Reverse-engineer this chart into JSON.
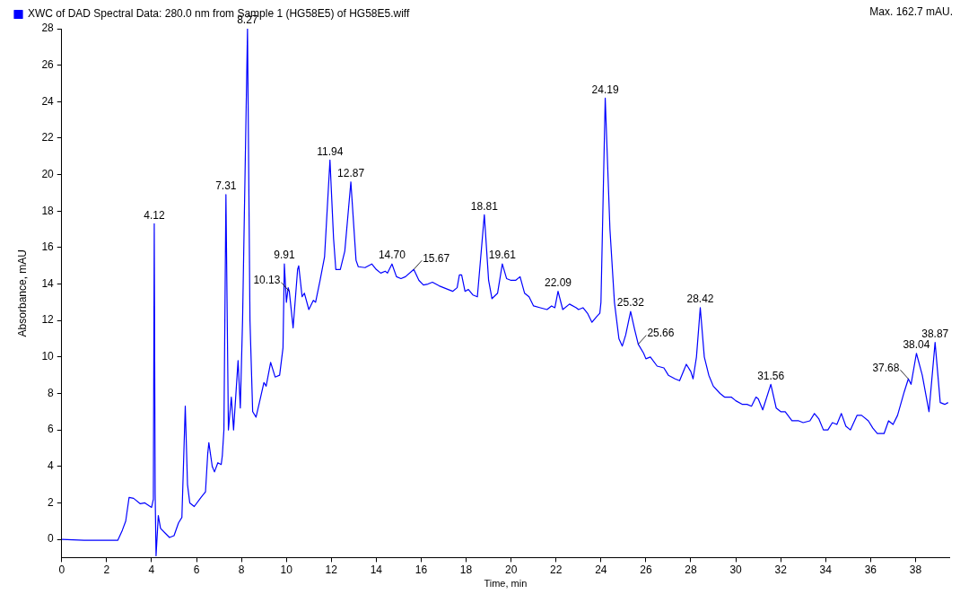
{
  "chart_data": {
    "type": "line",
    "xlabel": "Time, min",
    "ylabel": "Absorbance, mAU",
    "legend": "top left",
    "marker": "none",
    "line_style": "solid",
    "grid": false,
    "xlim": [
      0,
      39.5
    ],
    "xticks": [
      0,
      2,
      4,
      6,
      8,
      10,
      12,
      14,
      16,
      18,
      20,
      22,
      24,
      26,
      28,
      30,
      32,
      34,
      36,
      38
    ],
    "ylim": [
      -1,
      28
    ],
    "yticks": [
      0,
      2,
      4,
      6,
      8,
      10,
      12,
      14,
      16,
      18,
      20,
      22,
      24,
      26,
      28
    ],
    "series": [
      {
        "name": "XWC of DAD Spectral Data: 280.0 nm from Sample 1 (HG58E5) of HG58E5.wiff",
        "color": "#0000ff",
        "x": [
          0,
          1,
          2,
          2.5,
          2.7,
          2.85,
          3.0,
          3.2,
          3.5,
          3.7,
          4.0,
          4.08,
          4.12,
          4.16,
          4.2,
          4.3,
          4.4,
          4.6,
          4.8,
          5.0,
          5.2,
          5.35,
          5.5,
          5.6,
          5.7,
          5.9,
          6.2,
          6.4,
          6.5,
          6.55,
          6.7,
          6.8,
          6.95,
          7.1,
          7.15,
          7.22,
          7.31,
          7.42,
          7.55,
          7.65,
          7.85,
          7.95,
          8.05,
          8.27,
          8.38,
          8.5,
          8.65,
          8.8,
          9.0,
          9.1,
          9.3,
          9.5,
          9.7,
          9.85,
          9.91,
          10.0,
          10.08,
          10.13,
          10.3,
          10.5,
          10.55,
          10.7,
          10.8,
          11.0,
          11.2,
          11.3,
          11.5,
          11.7,
          11.94,
          12.1,
          12.2,
          12.4,
          12.6,
          12.87,
          13.1,
          13.2,
          13.5,
          13.8,
          14.0,
          14.2,
          14.4,
          14.5,
          14.7,
          14.9,
          15.1,
          15.3,
          15.67,
          15.9,
          16.1,
          16.3,
          16.5,
          16.8,
          17.2,
          17.4,
          17.6,
          17.7,
          17.8,
          17.95,
          18.1,
          18.3,
          18.5,
          18.81,
          19.0,
          19.15,
          19.4,
          19.61,
          19.8,
          20.0,
          20.2,
          20.4,
          20.6,
          20.8,
          21.0,
          21.3,
          21.6,
          21.8,
          21.95,
          22.09,
          22.3,
          22.6,
          22.9,
          23.0,
          23.2,
          23.4,
          23.6,
          23.8,
          23.95,
          24.0,
          24.19,
          24.4,
          24.6,
          24.8,
          24.95,
          25.1,
          25.32,
          25.5,
          25.66,
          25.9,
          26.0,
          26.2,
          26.5,
          26.8,
          27.0,
          27.3,
          27.5,
          27.8,
          28.0,
          28.1,
          28.25,
          28.42,
          28.6,
          28.8,
          29.0,
          29.3,
          29.5,
          29.8,
          30.0,
          30.3,
          30.5,
          30.7,
          30.9,
          31.0,
          31.2,
          31.56,
          31.8,
          32.0,
          32.2,
          32.5,
          32.8,
          33.0,
          33.3,
          33.5,
          33.7,
          33.9,
          34.1,
          34.3,
          34.5,
          34.7,
          34.9,
          35.1,
          35.4,
          35.6,
          35.9,
          36.1,
          36.3,
          36.6,
          36.8,
          37.0,
          37.2,
          37.5,
          37.68,
          37.8,
          38.04,
          38.3,
          38.6,
          38.87,
          39.1,
          39.3,
          39.45
        ],
        "values": [
          0,
          -0.05,
          -0.05,
          -0.05,
          0.5,
          1.0,
          2.3,
          2.25,
          1.95,
          2.0,
          1.75,
          2.2,
          17.3,
          2.5,
          -0.9,
          1.3,
          0.6,
          0.35,
          0.1,
          0.2,
          0.9,
          1.2,
          7.3,
          3.0,
          2.0,
          1.8,
          2.3,
          2.6,
          4.7,
          5.3,
          4.0,
          3.7,
          4.2,
          4.1,
          4.6,
          6.0,
          18.9,
          6.0,
          7.8,
          6.0,
          9.8,
          7.2,
          12.0,
          28.0,
          12.0,
          7.0,
          6.7,
          7.5,
          8.6,
          8.4,
          9.7,
          8.9,
          9.0,
          10.5,
          15.1,
          13.0,
          13.8,
          13.6,
          11.6,
          14.8,
          15.0,
          13.3,
          13.5,
          12.6,
          13.1,
          13.0,
          14.2,
          15.5,
          20.8,
          16.5,
          14.8,
          14.8,
          15.8,
          19.6,
          15.3,
          14.95,
          14.9,
          15.1,
          14.8,
          14.6,
          14.7,
          14.6,
          15.1,
          14.4,
          14.3,
          14.4,
          14.8,
          14.2,
          13.95,
          14.0,
          14.1,
          13.9,
          13.7,
          13.6,
          13.8,
          14.5,
          14.5,
          13.6,
          13.7,
          13.4,
          13.3,
          17.8,
          14.2,
          13.2,
          13.5,
          15.1,
          14.3,
          14.2,
          14.2,
          14.4,
          13.5,
          13.3,
          12.8,
          12.7,
          12.6,
          12.8,
          12.7,
          13.6,
          12.6,
          12.9,
          12.7,
          12.6,
          12.7,
          12.4,
          11.9,
          12.2,
          12.4,
          13.0,
          24.2,
          17.0,
          13.0,
          11.0,
          10.6,
          11.2,
          12.5,
          11.5,
          10.7,
          10.2,
          9.9,
          10.0,
          9.5,
          9.4,
          9.0,
          8.8,
          8.7,
          9.6,
          9.2,
          8.8,
          10.0,
          12.7,
          10.0,
          9.0,
          8.4,
          8.0,
          7.8,
          7.8,
          7.6,
          7.4,
          7.4,
          7.3,
          7.8,
          7.7,
          7.1,
          8.5,
          7.2,
          7.0,
          7.0,
          6.5,
          6.5,
          6.4,
          6.5,
          6.9,
          6.6,
          6.0,
          6.0,
          6.4,
          6.3,
          6.9,
          6.2,
          6.0,
          6.8,
          6.8,
          6.5,
          6.1,
          5.8,
          5.8,
          6.5,
          6.3,
          6.8,
          8.1,
          8.8,
          8.5,
          10.2,
          9.0,
          7.0,
          10.8,
          7.5,
          7.4,
          7.5
        ]
      }
    ],
    "annotations": [
      "Max. 162.7 mAU.",
      {
        "text": "4.12",
        "x": 4.12,
        "y": 17.3
      },
      {
        "text": "7.31",
        "x": 7.31,
        "y": 18.9
      },
      {
        "text": "8.27",
        "x": 8.27,
        "y": 28.0
      },
      {
        "text": "9.91",
        "x": 9.91,
        "y": 15.1
      },
      {
        "text": "10.13",
        "x": 10.13,
        "y": 13.6
      },
      {
        "text": "11.94",
        "x": 11.94,
        "y": 20.8
      },
      {
        "text": "12.87",
        "x": 12.87,
        "y": 19.6
      },
      {
        "text": "14.70",
        "x": 14.7,
        "y": 15.1
      },
      {
        "text": "15.67",
        "x": 15.67,
        "y": 14.8
      },
      {
        "text": "18.81",
        "x": 18.81,
        "y": 17.8
      },
      {
        "text": "19.61",
        "x": 19.61,
        "y": 15.1
      },
      {
        "text": "22.09",
        "x": 22.09,
        "y": 13.6
      },
      {
        "text": "24.19",
        "x": 24.19,
        "y": 24.2
      },
      {
        "text": "25.32",
        "x": 25.32,
        "y": 12.5
      },
      {
        "text": "25.66",
        "x": 25.66,
        "y": 10.7
      },
      {
        "text": "28.42",
        "x": 28.42,
        "y": 12.7
      },
      {
        "text": "31.56",
        "x": 31.56,
        "y": 8.5
      },
      {
        "text": "37.68",
        "x": 37.68,
        "y": 8.8
      },
      {
        "text": "38.04",
        "x": 38.04,
        "y": 10.2
      },
      {
        "text": "38.87",
        "x": 38.87,
        "y": 10.8
      }
    ]
  }
}
